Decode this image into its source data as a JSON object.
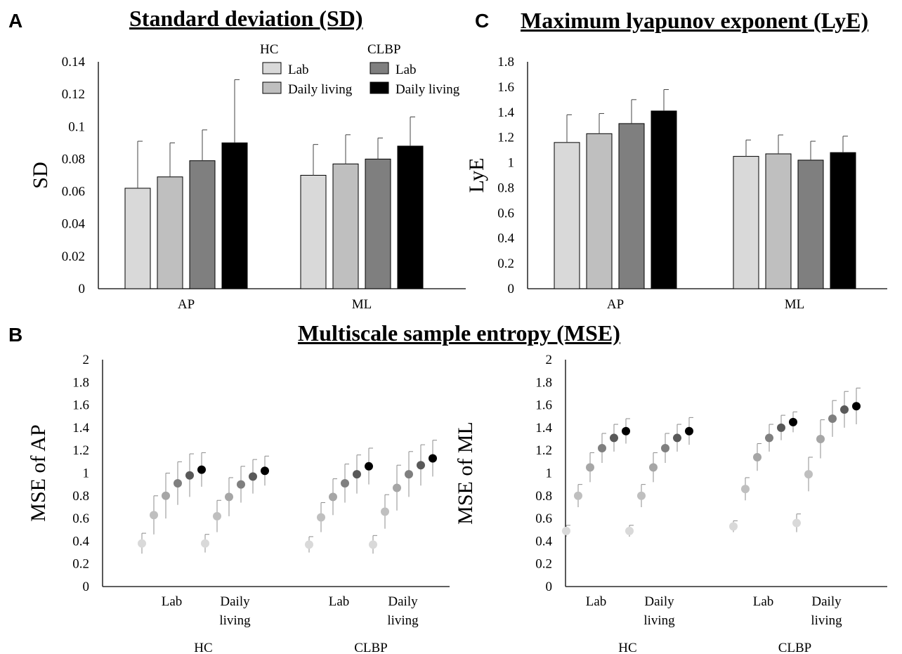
{
  "panels": {
    "A": "A",
    "B": "B",
    "C": "C"
  },
  "titles": {
    "sd": "Standard deviation (SD)",
    "lye": "Maximum lyapunov exponent (LyE)",
    "mse": "Multiscale sample entropy (MSE)"
  },
  "legend": {
    "hc_label": "HC",
    "clbp_label": "CLBP",
    "items": [
      {
        "group": "HC",
        "label": "Lab",
        "color": "#d9d9d9"
      },
      {
        "group": "HC",
        "label": "Daily living",
        "color": "#bfbfbf"
      },
      {
        "group": "CLBP",
        "label": "Lab",
        "color": "#7f7f7f"
      },
      {
        "group": "CLBP",
        "label": "Daily living",
        "color": "#000000"
      }
    ]
  },
  "chart_data": [
    {
      "id": "sd",
      "type": "bar",
      "title": "Standard deviation (SD)",
      "ylabel": "SD",
      "xlabel": "",
      "ylim": [
        0,
        0.14
      ],
      "yticks": [
        "0",
        "0.02",
        "0.04",
        "0.06",
        "0.08",
        "0.1",
        "0.12",
        "0.14"
      ],
      "categories": [
        "AP",
        "ML"
      ],
      "colors": [
        "#d9d9d9",
        "#bfbfbf",
        "#7f7f7f",
        "#000000"
      ],
      "series": [
        {
          "name": "HC Lab",
          "values": [
            0.062,
            0.07
          ],
          "errors": [
            0.029,
            0.019
          ]
        },
        {
          "name": "HC Daily living",
          "values": [
            0.069,
            0.077
          ],
          "errors": [
            0.021,
            0.018
          ]
        },
        {
          "name": "CLBP Lab",
          "values": [
            0.079,
            0.08
          ],
          "errors": [
            0.019,
            0.013
          ]
        },
        {
          "name": "CLBP Daily living",
          "values": [
            0.09,
            0.088
          ],
          "errors": [
            0.039,
            0.018
          ]
        }
      ]
    },
    {
      "id": "lye",
      "type": "bar",
      "title": "Maximum lyapunov exponent (LyE)",
      "ylabel": "LyE",
      "xlabel": "",
      "ylim": [
        0,
        1.8
      ],
      "yticks": [
        "0",
        "0.2",
        "0.4",
        "0.6",
        "0.8",
        "1",
        "1.2",
        "1.4",
        "1.6",
        "1.8"
      ],
      "categories": [
        "AP",
        "ML"
      ],
      "colors": [
        "#d9d9d9",
        "#bfbfbf",
        "#7f7f7f",
        "#000000"
      ],
      "series": [
        {
          "name": "HC Lab",
          "values": [
            1.16,
            1.05
          ],
          "errors": [
            0.22,
            0.13
          ]
        },
        {
          "name": "HC Daily living",
          "values": [
            1.23,
            1.07
          ],
          "errors": [
            0.16,
            0.15
          ]
        },
        {
          "name": "CLBP Lab",
          "values": [
            1.31,
            1.02
          ],
          "errors": [
            0.19,
            0.15
          ]
        },
        {
          "name": "CLBP Daily living",
          "values": [
            1.41,
            1.08
          ],
          "errors": [
            0.17,
            0.13
          ]
        }
      ]
    },
    {
      "id": "mse_ap",
      "type": "scatter",
      "ylabel": "MSE of AP",
      "ylim": [
        0,
        2
      ],
      "yticks": [
        "0",
        "0.2",
        "0.4",
        "0.6",
        "0.8",
        "1",
        "1.2",
        "1.4",
        "1.6",
        "1.8",
        "2"
      ],
      "groups": [
        {
          "label_lines": [
            "Lab"
          ],
          "values": [
            0.38,
            0.63,
            0.8,
            0.91,
            0.98,
            1.03
          ],
          "errors": [
            0.09,
            0.17,
            0.2,
            0.19,
            0.19,
            0.15
          ]
        },
        {
          "label_lines": [
            "Daily",
            "living"
          ],
          "values": [
            0.38,
            0.62,
            0.79,
            0.9,
            0.97,
            1.02
          ],
          "errors": [
            0.08,
            0.14,
            0.17,
            0.16,
            0.15,
            0.13
          ]
        },
        {
          "label_lines": [
            "Lab"
          ],
          "values": [
            0.37,
            0.61,
            0.79,
            0.91,
            0.99,
            1.06
          ],
          "errors": [
            0.07,
            0.13,
            0.16,
            0.17,
            0.17,
            0.16
          ]
        },
        {
          "label_lines": [
            "Daily",
            "living"
          ],
          "values": [
            0.37,
            0.66,
            0.87,
            0.99,
            1.07,
            1.13
          ],
          "errors": [
            0.08,
            0.15,
            0.2,
            0.2,
            0.18,
            0.16
          ]
        }
      ],
      "group_labels": [
        "HC",
        "CLBP"
      ],
      "point_colors": [
        "#d9d9d9",
        "#bfbfbf",
        "#a6a6a6",
        "#7f7f7f",
        "#595959",
        "#000000"
      ]
    },
    {
      "id": "mse_ml",
      "type": "scatter",
      "ylabel": "MSE of ML",
      "ylim": [
        0,
        2
      ],
      "yticks": [
        "0",
        "0.2",
        "0.4",
        "0.6",
        "0.8",
        "1",
        "1.2",
        "1.4",
        "1.6",
        "1.8",
        "2"
      ],
      "groups": [
        {
          "label_lines": [
            "Lab"
          ],
          "values": [
            0.49,
            0.8,
            1.05,
            1.22,
            1.31,
            1.37
          ],
          "errors": [
            0.05,
            0.1,
            0.13,
            0.13,
            0.12,
            0.11
          ]
        },
        {
          "label_lines": [
            "Daily",
            "living"
          ],
          "values": [
            0.49,
            0.8,
            1.05,
            1.22,
            1.31,
            1.37
          ],
          "errors": [
            0.05,
            0.1,
            0.13,
            0.13,
            0.12,
            0.12
          ]
        },
        {
          "label_lines": [
            "Lab"
          ],
          "values": [
            0.53,
            0.86,
            1.14,
            1.31,
            1.4,
            1.45
          ],
          "errors": [
            0.05,
            0.1,
            0.12,
            0.12,
            0.11,
            0.09
          ]
        },
        {
          "label_lines": [
            "Daily",
            "living"
          ],
          "values": [
            0.56,
            0.99,
            1.3,
            1.48,
            1.56,
            1.59
          ],
          "errors": [
            0.08,
            0.15,
            0.17,
            0.16,
            0.16,
            0.16
          ]
        }
      ],
      "group_labels": [
        "HC",
        "CLBP"
      ],
      "point_colors": [
        "#d9d9d9",
        "#bfbfbf",
        "#a6a6a6",
        "#7f7f7f",
        "#595959",
        "#000000"
      ]
    }
  ]
}
